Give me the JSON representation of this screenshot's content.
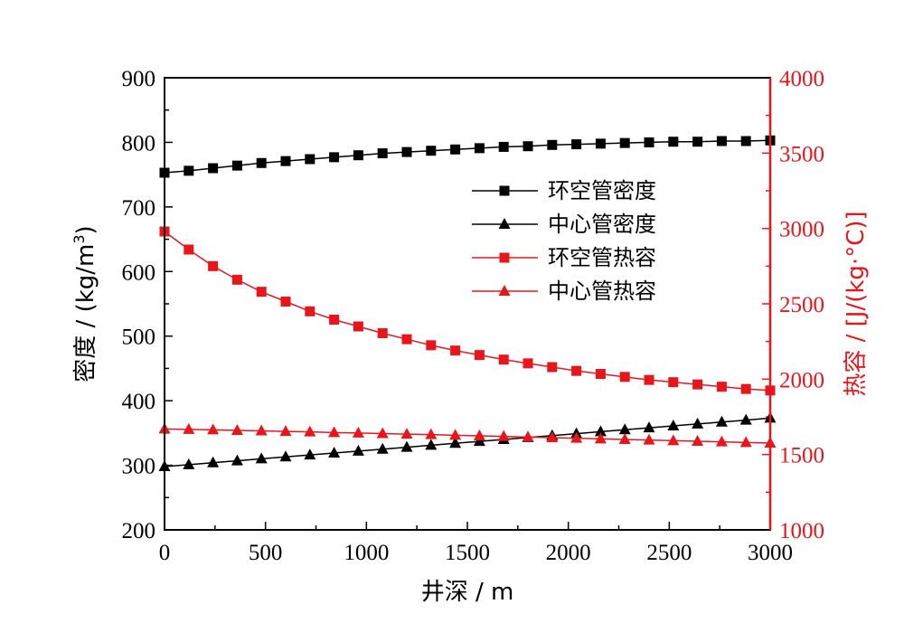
{
  "chart_data": {
    "type": "line",
    "x_axis": {
      "label": "井深 / m",
      "range": [
        0,
        3000
      ],
      "ticks": [
        0,
        500,
        1000,
        1500,
        2000,
        2500,
        3000
      ],
      "tick_labels": [
        "0",
        "500",
        "1000",
        "1500",
        "2000",
        "2500",
        "3000"
      ]
    },
    "y_left_axis": {
      "label": "密度 / (kg/m",
      "label_superscript": "3",
      "label_close": ")",
      "range": [
        200,
        900
      ],
      "ticks": [
        200,
        300,
        400,
        500,
        600,
        700,
        800,
        900
      ],
      "tick_labels": [
        "200",
        "300",
        "400",
        "500",
        "600",
        "700",
        "800",
        "900"
      ],
      "color": "#000000"
    },
    "y_right_axis": {
      "label": "热容 / [J/(kg·°C)]",
      "range": [
        1000,
        4000
      ],
      "ticks": [
        1000,
        1500,
        2000,
        2500,
        3000,
        3500,
        4000
      ],
      "tick_labels": [
        "1000",
        "1500",
        "2000",
        "2500",
        "3000",
        "3500",
        "4000"
      ],
      "color": "#e8161b"
    },
    "x": [
      0,
      120,
      240,
      360,
      480,
      600,
      720,
      840,
      960,
      1080,
      1200,
      1320,
      1440,
      1560,
      1680,
      1800,
      1920,
      2040,
      2160,
      2280,
      2400,
      2520,
      2640,
      2760,
      2880,
      3000
    ],
    "series": [
      {
        "name": "环空管密度",
        "axis": "left",
        "marker": "square",
        "color": "#000000",
        "values": [
          753,
          756,
          760,
          764,
          768,
          771,
          774,
          777,
          780,
          783,
          785,
          787,
          789,
          791,
          793,
          794,
          796,
          797,
          798,
          799,
          800,
          801,
          801,
          802,
          802,
          803
        ]
      },
      {
        "name": "中心管密度",
        "axis": "left",
        "marker": "triangle",
        "color": "#000000",
        "values": [
          298,
          301,
          304,
          307,
          310,
          313,
          316,
          319,
          322,
          325,
          328,
          331,
          334,
          337,
          340,
          343,
          346,
          349,
          352,
          355,
          358,
          361,
          364,
          367,
          370,
          373
        ]
      },
      {
        "name": "环空管热容",
        "axis": "right",
        "marker": "square",
        "color": "#e8161b",
        "values": [
          2980,
          2860,
          2750,
          2660,
          2580,
          2515,
          2450,
          2395,
          2350,
          2305,
          2265,
          2225,
          2190,
          2160,
          2130,
          2105,
          2080,
          2055,
          2035,
          2015,
          1995,
          1980,
          1965,
          1950,
          1935,
          1925
        ]
      },
      {
        "name": "中心管热容",
        "axis": "right",
        "marker": "triangle",
        "color": "#e8161b",
        "values": [
          1670,
          1667,
          1664,
          1660,
          1657,
          1653,
          1650,
          1646,
          1643,
          1639,
          1635,
          1632,
          1628,
          1624,
          1620,
          1616,
          1612,
          1608,
          1604,
          1600,
          1596,
          1592,
          1588,
          1584,
          1580,
          1576
        ]
      }
    ],
    "legend_position": "right-center",
    "grid": false
  }
}
